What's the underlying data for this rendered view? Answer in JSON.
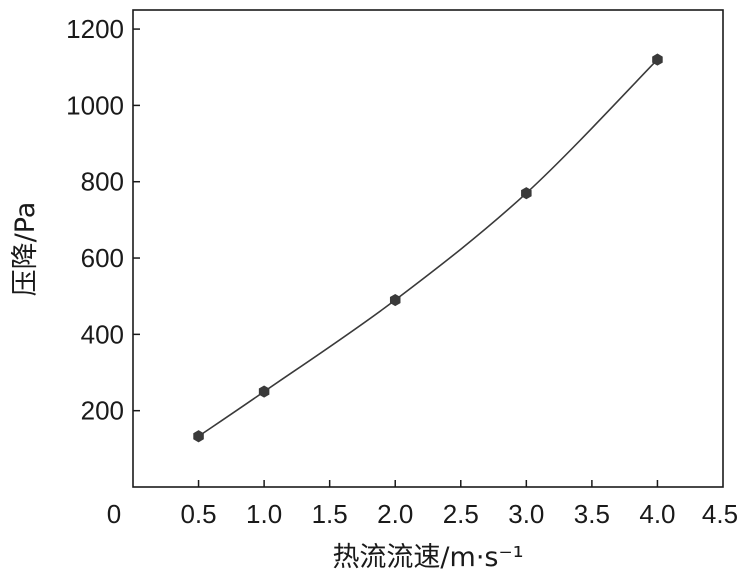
{
  "chart_data": {
    "type": "line",
    "title": "",
    "xlabel": "热流流速/m·s⁻¹",
    "ylabel": "压降/Pa",
    "xlim": [
      0,
      4.5
    ],
    "ylim": [
      0,
      1250
    ],
    "x_ticks": [
      "0",
      "0.5",
      "1.0",
      "1.5",
      "2.0",
      "2.5",
      "3.0",
      "3.5",
      "4.0",
      "4.5"
    ],
    "y_ticks": [
      "200",
      "400",
      "600",
      "800",
      "1000",
      "1200"
    ],
    "grid": false,
    "series": [
      {
        "x": [
          0.5,
          1.0,
          2.0,
          3.0,
          4.0
        ],
        "y": [
          133,
          250,
          490,
          770,
          1120
        ],
        "color": "#3a3a3a",
        "marker": "hexagon"
      }
    ]
  }
}
